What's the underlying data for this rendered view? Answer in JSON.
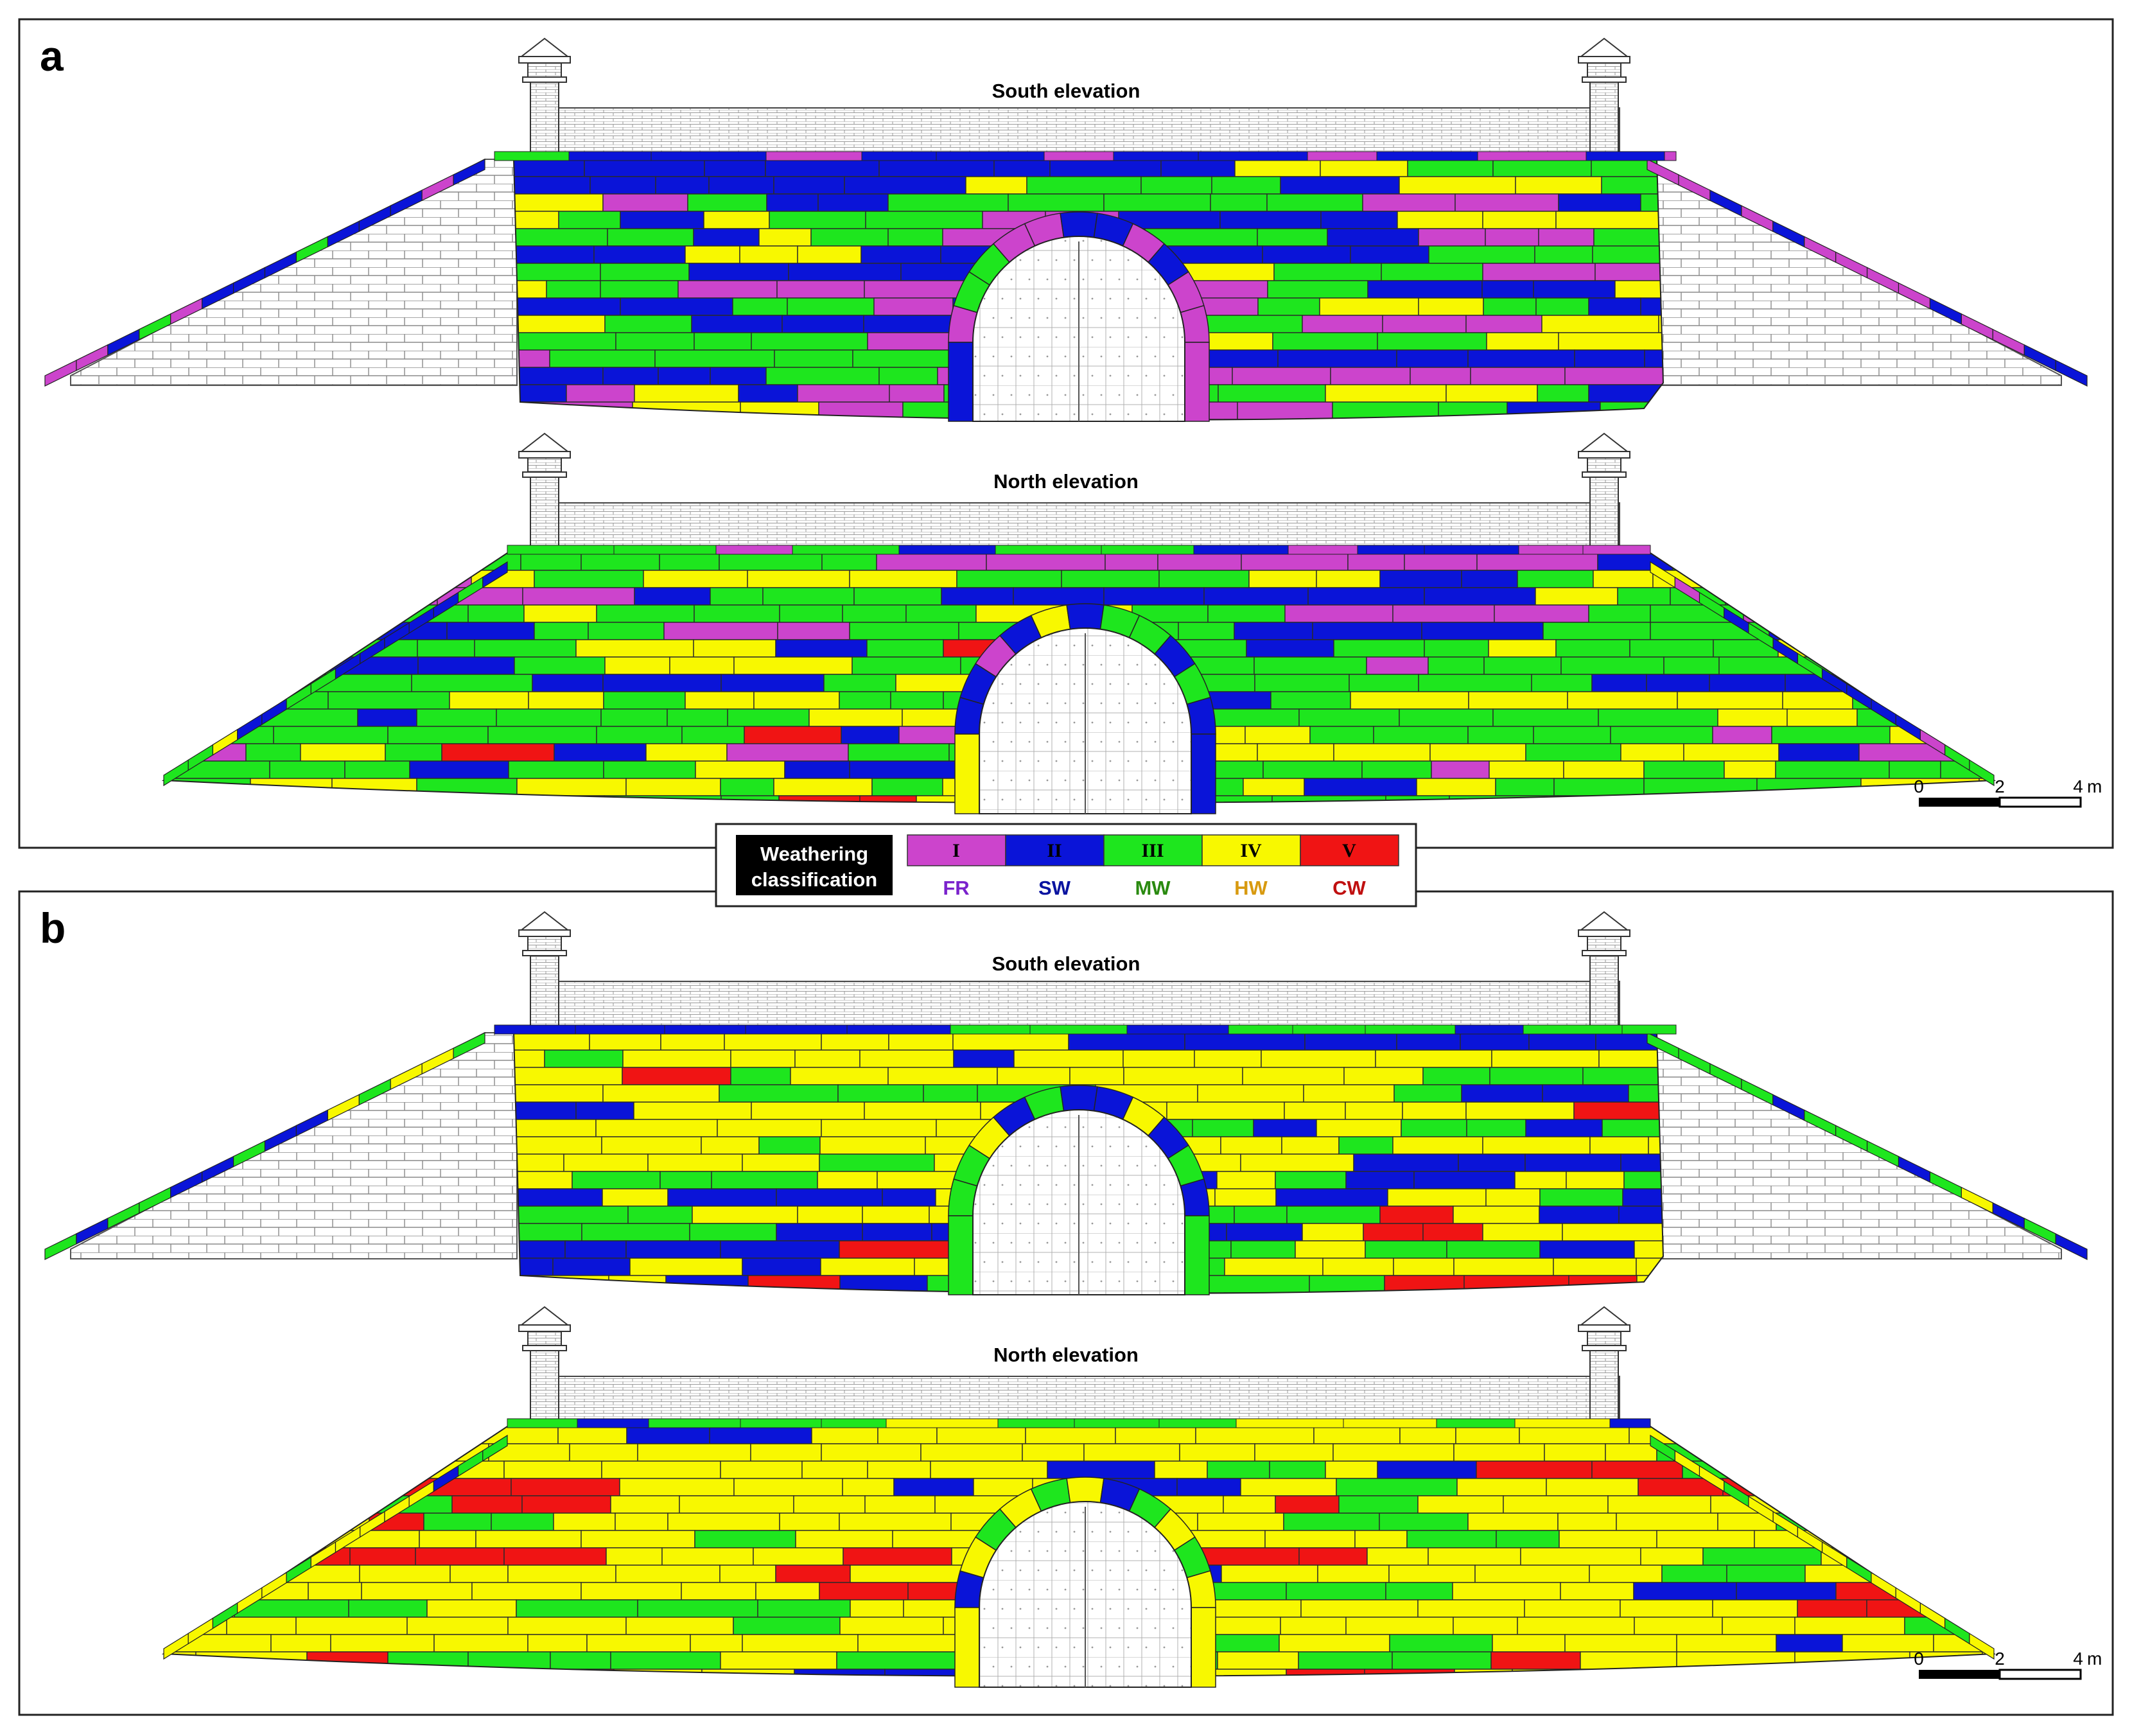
{
  "colors": {
    "I": "#cc44cc",
    "II": "#0a14d8",
    "III": "#1ee61e",
    "IV": "#f8f800",
    "V": "#f01414"
  },
  "legend": {
    "title_line1": "Weathering",
    "title_line2": "classification",
    "classes": [
      {
        "id": "I",
        "roman": "I",
        "code": "FR",
        "code_color": "#7a22cc"
      },
      {
        "id": "II",
        "roman": "II",
        "code": "SW",
        "code_color": "#0a14a0"
      },
      {
        "id": "III",
        "roman": "III",
        "code": "MW",
        "code_color": "#2a8a10"
      },
      {
        "id": "IV",
        "roman": "IV",
        "code": "HW",
        "code_color": "#d89a10"
      },
      {
        "id": "V",
        "roman": "V",
        "code": "CW",
        "code_color": "#c01010"
      }
    ]
  },
  "panels": [
    {
      "label": "a",
      "south_title": "South elevation",
      "north_title": "North elevation",
      "south_mix": {
        "I": 0.24,
        "II": 0.22,
        "III": 0.38,
        "IV": 0.13,
        "V": 0.03
      },
      "north_mix": {
        "I": 0.06,
        "II": 0.12,
        "III": 0.62,
        "IV": 0.17,
        "V": 0.03
      },
      "south_slope_mix": {
        "I": 0.55,
        "II": 0.35,
        "III": 0.1
      },
      "north_slope_mix": {
        "I": 0.15,
        "II": 0.45,
        "III": 0.35,
        "IV": 0.05
      }
    },
    {
      "label": "b",
      "south_title": "South elevation",
      "north_title": "North elevation",
      "south_mix": {
        "II": 0.18,
        "III": 0.22,
        "IV": 0.52,
        "V": 0.08
      },
      "north_mix": {
        "II": 0.07,
        "III": 0.18,
        "IV": 0.67,
        "V": 0.08
      },
      "south_slope_mix": {
        "II": 0.4,
        "III": 0.45,
        "IV": 0.15
      },
      "north_slope_mix": {
        "II": 0.15,
        "III": 0.4,
        "IV": 0.45
      }
    }
  ],
  "scale_bar": {
    "ticks": [
      "0",
      "2",
      "4"
    ],
    "unit": "m"
  }
}
